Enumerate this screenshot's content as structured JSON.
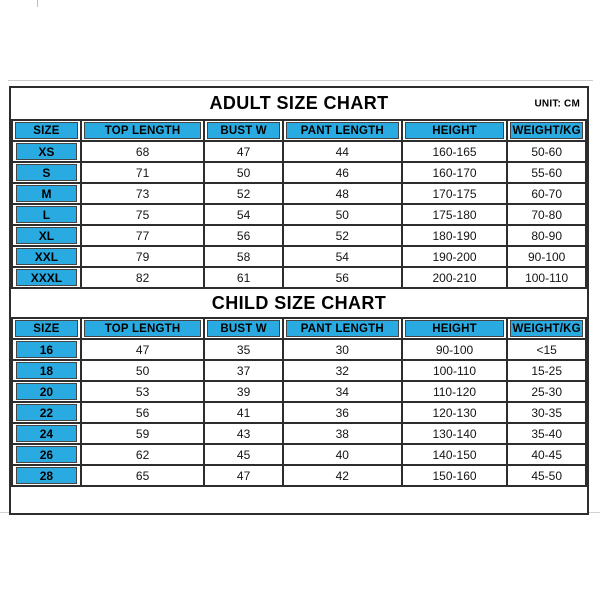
{
  "colors": {
    "accent": "#29abe2",
    "border": "#2d2d2d",
    "text": "#000000",
    "background": "#ffffff"
  },
  "chart_data": [
    {
      "type": "table",
      "title": "ADULT SIZE CHART",
      "unit": "UNIT: CM",
      "columns": [
        "SIZE",
        "TOP LENGTH",
        "BUST W",
        "PANT LENGTH",
        "HEIGHT",
        "WEIGHT/KG"
      ],
      "rows": [
        [
          "XS",
          "68",
          "47",
          "44",
          "160-165",
          "50-60"
        ],
        [
          "S",
          "71",
          "50",
          "46",
          "160-170",
          "55-60"
        ],
        [
          "M",
          "73",
          "52",
          "48",
          "170-175",
          "60-70"
        ],
        [
          "L",
          "75",
          "54",
          "50",
          "175-180",
          "70-80"
        ],
        [
          "XL",
          "77",
          "56",
          "52",
          "180-190",
          "80-90"
        ],
        [
          "XXL",
          "79",
          "58",
          "54",
          "190-200",
          "90-100"
        ],
        [
          "XXXL",
          "82",
          "61",
          "56",
          "200-210",
          "100-110"
        ]
      ]
    },
    {
      "type": "table",
      "title": "CHILD SIZE CHART",
      "columns": [
        "SIZE",
        "TOP LENGTH",
        "BUST W",
        "PANT LENGTH",
        "HEIGHT",
        "WEIGHT/KG"
      ],
      "rows": [
        [
          "16",
          "47",
          "35",
          "30",
          "90-100",
          "<15"
        ],
        [
          "18",
          "50",
          "37",
          "32",
          "100-110",
          "15-25"
        ],
        [
          "20",
          "53",
          "39",
          "34",
          "110-120",
          "25-30"
        ],
        [
          "22",
          "56",
          "41",
          "36",
          "120-130",
          "30-35"
        ],
        [
          "24",
          "59",
          "43",
          "38",
          "130-140",
          "35-40"
        ],
        [
          "26",
          "62",
          "45",
          "40",
          "140-150",
          "40-45"
        ],
        [
          "28",
          "65",
          "47",
          "42",
          "150-160",
          "45-50"
        ]
      ]
    }
  ]
}
